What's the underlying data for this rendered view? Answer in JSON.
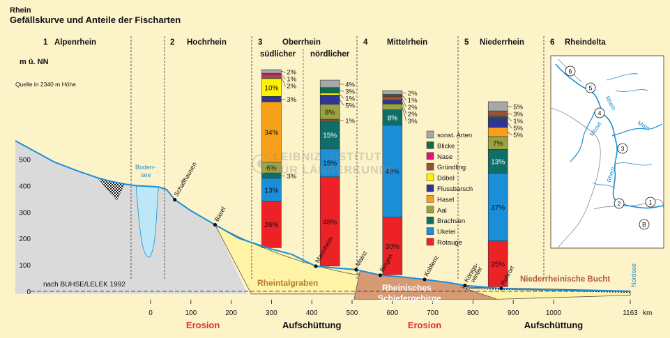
{
  "header": {
    "supertitle": "Rhein",
    "title": "Gefällskurve und Anteile der Fischarten"
  },
  "sections": [
    {
      "num": "1",
      "name": "Alpenrhein"
    },
    {
      "num": "2",
      "name": "Hochrhein"
    },
    {
      "num": "3",
      "name": "Oberrhein"
    },
    {
      "num": "4",
      "name": "Mittelrhein"
    },
    {
      "num": "5",
      "name": "Niederrhein"
    },
    {
      "num": "6",
      "name": "Rheindelta"
    }
  ],
  "subsections": {
    "south": "südlicher",
    "north": "nördlicher"
  },
  "labels": {
    "source": "Quelle in 2340 m Höhe",
    "bodensee": "Boden-\nsee",
    "citation": "nach BUHSE/LELEK 1992",
    "nordsee": "Nordsee",
    "km": "km",
    "watermark_line1": "LEIBNIZ-INSTITUT",
    "watermark_line2": "FÜR LÄNDERKUNDE"
  },
  "regions": {
    "rheintalgraben": "Rheintalgraben",
    "schiefergebirge": "Rheinisches\nSchiefergebirge",
    "bucht": "Niederrheinische Bucht"
  },
  "bottom_labels": [
    {
      "text": "Erosion",
      "km": 130,
      "color": "#e0302a"
    },
    {
      "text": "Aufschüttung",
      "km": 400,
      "color": "#111111"
    },
    {
      "text": "Erosion",
      "km": 680,
      "color": "#e0302a"
    },
    {
      "text": "Aufschüttung",
      "km": 1000,
      "color": "#111111"
    }
  ],
  "places": [
    {
      "name": "Schaffhausen",
      "km": 60,
      "elev": 347
    },
    {
      "name": "Basel",
      "km": 160,
      "elev": 252
    },
    {
      "name": "Mannheim",
      "km": 410,
      "elev": 95
    },
    {
      "name": "Mainz",
      "km": 510,
      "elev": 82
    },
    {
      "name": "Bingen",
      "km": 570,
      "elev": 61
    },
    {
      "name": "Koblenz",
      "km": 680,
      "elev": 45
    },
    {
      "name": "Königs-\nwinter",
      "km": 780,
      "elev": 22
    },
    {
      "name": "Ruhrort",
      "km": 870,
      "elev": 11
    }
  ],
  "legend": [
    {
      "name": "sonst. Arten",
      "color": "#a7a7a7"
    },
    {
      "name": "Blicke",
      "color": "#126b4a"
    },
    {
      "name": "Nase",
      "color": "#e0137a"
    },
    {
      "name": "Gründling",
      "color": "#9a5138"
    },
    {
      "name": "Döbel",
      "color": "#fff200"
    },
    {
      "name": "Flussbarsch",
      "color": "#2f3595"
    },
    {
      "name": "Hasel",
      "color": "#f7a11a"
    },
    {
      "name": "Aal",
      "color": "#9aa33f"
    },
    {
      "name": "Brachsen",
      "color": "#0f6e6a"
    },
    {
      "name": "Ukelei",
      "color": "#1a8fd8"
    },
    {
      "name": "Rotauge",
      "color": "#ec2227"
    }
  ],
  "minimap": {
    "markers": [
      "6",
      "5",
      "4",
      "3",
      "2",
      "1",
      "B"
    ],
    "rivers": [
      "Rhein",
      "Mosel",
      "Main",
      "Rhein"
    ]
  },
  "chart_data": {
    "type": "area",
    "title": "Gefällskurve und Anteile der Fischarten",
    "ylabel": "m ü. NN",
    "xlabel": "km",
    "x_ticks": [
      0,
      100,
      200,
      300,
      400,
      500,
      600,
      700,
      800,
      900,
      1000,
      1163
    ],
    "y_ticks": [
      0,
      100,
      200,
      300,
      400,
      500
    ],
    "xlim": [
      -280,
      1163
    ],
    "ylim": [
      -10,
      560
    ],
    "profile": {
      "km": [
        -280,
        -240,
        -200,
        -150,
        -110,
        -90,
        -70,
        -50,
        -30,
        0,
        20,
        40,
        60,
        100,
        160,
        220,
        300,
        350,
        410,
        460,
        510,
        570,
        620,
        680,
        740,
        780,
        820,
        870,
        920,
        1000,
        1080,
        1163
      ],
      "elev": [
        570,
        530,
        490,
        455,
        430,
        420,
        412,
        405,
        400,
        397,
        395,
        385,
        347,
        305,
        252,
        200,
        160,
        140,
        95,
        88,
        82,
        61,
        55,
        45,
        33,
        22,
        17,
        11,
        8,
        5,
        3,
        0
      ]
    },
    "fish_stacks": [
      {
        "section": "südlicher Oberrhein",
        "km": 300,
        "segments": [
          {
            "species": "Rotauge",
            "pct": 26
          },
          {
            "species": "Ukelei",
            "pct": 13
          },
          {
            "species": "Brachsen",
            "pct": 3
          },
          {
            "species": "Aal",
            "pct": 6
          },
          {
            "species": "Hasel",
            "pct": 34
          },
          {
            "species": "Flussbarsch",
            "pct": 3
          },
          {
            "species": "Döbel",
            "pct": 10
          },
          {
            "species": "Gründling",
            "pct": 2
          },
          {
            "species": "Nase",
            "pct": 1
          },
          {
            "species": "sonst. Arten",
            "pct": 2
          }
        ]
      },
      {
        "section": "nördlicher Oberrhein",
        "km": 445,
        "segments": [
          {
            "species": "Rotauge",
            "pct": 48
          },
          {
            "species": "Ukelei",
            "pct": 15
          },
          {
            "species": "Brachsen",
            "pct": 15
          },
          {
            "species": "Gründling",
            "pct": 1
          },
          {
            "species": "Aal",
            "pct": 8
          },
          {
            "species": "Flussbarsch",
            "pct": 5
          },
          {
            "species": "Döbel",
            "pct": 1
          },
          {
            "species": "Blicke",
            "pct": 3
          },
          {
            "species": "sonst. Arten",
            "pct": 4
          }
        ]
      },
      {
        "section": "Mittelrhein",
        "km": 600,
        "segments": [
          {
            "species": "Rotauge",
            "pct": 30
          },
          {
            "species": "Ukelei",
            "pct": 48
          },
          {
            "species": "Brachsen",
            "pct": 8
          },
          {
            "species": "Aal",
            "pct": 3
          },
          {
            "species": "Flussbarsch",
            "pct": 2
          },
          {
            "species": "Gründling",
            "pct": 2
          },
          {
            "species": "Blicke",
            "pct": 1
          },
          {
            "species": "sonst. Arten",
            "pct": 2
          }
        ]
      },
      {
        "section": "Niederrhein",
        "km": 862,
        "segments": [
          {
            "species": "Rotauge",
            "pct": 25
          },
          {
            "species": "Ukelei",
            "pct": 37
          },
          {
            "species": "Brachsen",
            "pct": 13
          },
          {
            "species": "Aal",
            "pct": 7
          },
          {
            "species": "Hasel",
            "pct": 5
          },
          {
            "species": "Flussbarsch",
            "pct": 5
          },
          {
            "species": "Blicke",
            "pct": 1
          },
          {
            "species": "Gründling",
            "pct": 3
          },
          {
            "species": "sonst. Arten",
            "pct": 5
          }
        ]
      }
    ]
  }
}
